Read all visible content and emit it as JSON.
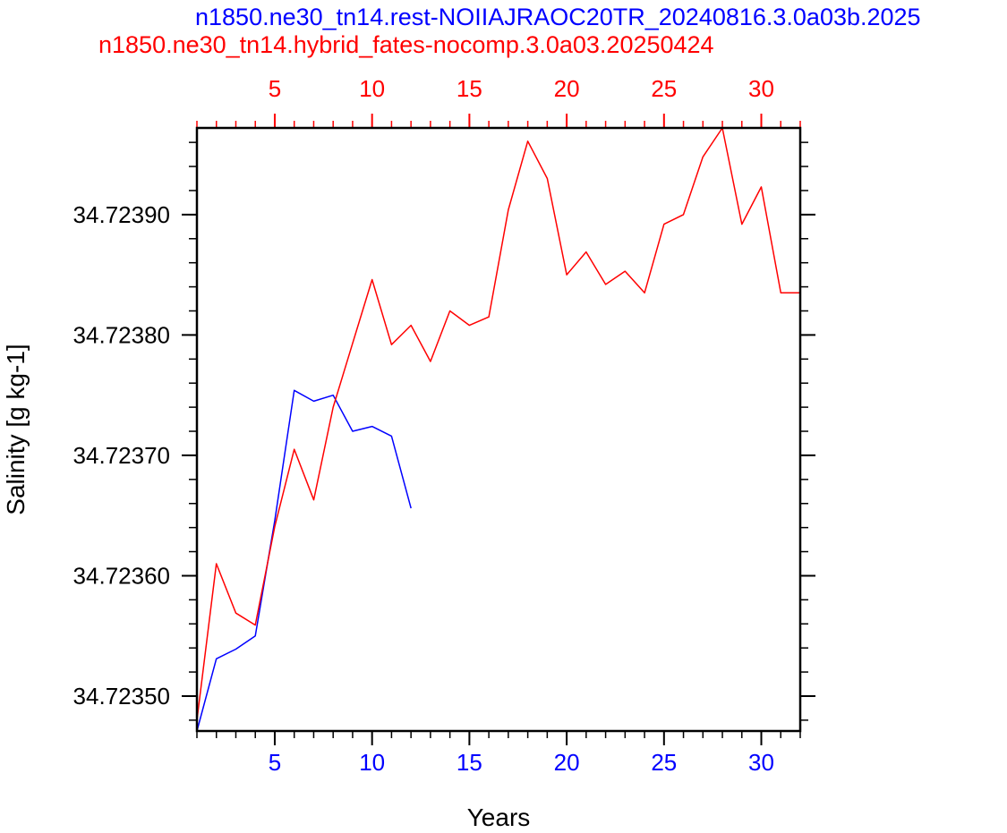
{
  "chart_data": {
    "type": "line",
    "title_top": "n1850.ne30_tn14.rest-NOIIAJRAOC20TR_20240816.3.0a03b.2025",
    "title_second": "n1850.ne30_tn14.hybrid_fates-nocomp.3.0a03.20250424",
    "xlabel": "Years",
    "ylabel": "Salinity [g kg-1]",
    "xlim": [
      1,
      32
    ],
    "ylim": [
      34.723471,
      34.723972
    ],
    "y_ticks": [
      34.7235,
      34.7236,
      34.7237,
      34.7238,
      34.7239
    ],
    "y_tick_labels": [
      "34.72350",
      "34.72360",
      "34.72370",
      "34.72380",
      "34.72390"
    ],
    "x_ticks": [
      5,
      10,
      15,
      20,
      25,
      30
    ],
    "x_tick_labels": [
      "5",
      "10",
      "15",
      "20",
      "25",
      "30"
    ],
    "top_x_ticks": [
      5,
      10,
      15,
      20,
      25,
      30
    ],
    "top_x_tick_labels": [
      "5",
      "10",
      "15",
      "20",
      "25",
      "30"
    ],
    "grid": false,
    "series": [
      {
        "color": "#0000ff",
        "x": [
          1,
          2,
          3,
          4,
          5,
          6,
          7,
          8,
          9,
          10,
          11,
          12
        ],
        "values": [
          34.723471,
          34.723531,
          34.723539,
          34.72355,
          34.723646,
          34.723754,
          34.723745,
          34.72375,
          34.72372,
          34.723724,
          34.723716,
          34.723656
        ]
      },
      {
        "color": "#ff0000",
        "x": [
          1,
          2,
          3,
          4,
          5,
          6,
          7,
          8,
          9,
          10,
          11,
          12,
          13,
          14,
          15,
          16,
          17,
          18,
          19,
          20,
          21,
          22,
          23,
          24,
          25,
          26,
          27,
          28,
          29,
          30,
          31,
          32
        ],
        "values": [
          34.72348,
          34.72361,
          34.723569,
          34.723559,
          34.723641,
          34.723705,
          34.723663,
          34.72374,
          34.723793,
          34.723846,
          34.723792,
          34.723808,
          34.723778,
          34.72382,
          34.723808,
          34.723815,
          34.723904,
          34.723961,
          34.72393,
          34.72385,
          34.723869,
          34.723842,
          34.723853,
          34.723835,
          34.723892,
          34.7239,
          34.723948,
          34.723972,
          34.723892,
          34.723923,
          34.723835,
          34.723835
        ]
      }
    ]
  },
  "colors": {
    "top_series": "#0000ff",
    "bottom_series": "#ff0000",
    "axis": "#000000"
  }
}
